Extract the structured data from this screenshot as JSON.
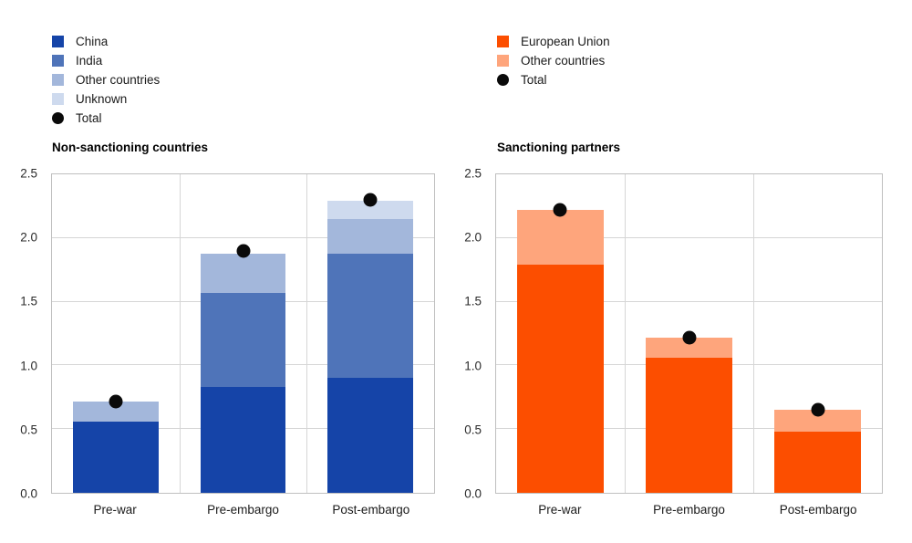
{
  "background": "#ffffff",
  "chart_data": [
    {
      "type": "bar",
      "stacked": true,
      "title": "Non-sanctioning countries",
      "legend_position": "top-left",
      "legend": [
        {
          "label": "China",
          "color": "#1544a8",
          "marker": "square"
        },
        {
          "label": "India",
          "color": "#4f74b9",
          "marker": "square"
        },
        {
          "label": "Other countries",
          "color": "#a3b7db",
          "marker": "square"
        },
        {
          "label": "Unknown",
          "color": "#cedaee",
          "marker": "square"
        },
        {
          "label": "Total",
          "color": "#0a0a0a",
          "marker": "dot"
        }
      ],
      "categories": [
        "Pre-war",
        "Pre-embargo",
        "Post-embargo"
      ],
      "series": [
        {
          "name": "China",
          "color": "#1544a8",
          "values": [
            0.56,
            0.83,
            0.9
          ]
        },
        {
          "name": "India",
          "color": "#4f74b9",
          "values": [
            0,
            0.74,
            0.98
          ]
        },
        {
          "name": "Other countries",
          "color": "#a3b7db",
          "values": [
            0.16,
            0.31,
            0.27
          ]
        },
        {
          "name": "Unknown",
          "color": "#cedaee",
          "values": [
            0,
            0,
            0.14
          ]
        }
      ],
      "dots": {
        "name": "Total",
        "color": "#0a0a0a",
        "values": [
          0.72,
          1.9,
          2.3
        ]
      },
      "ylim": [
        0,
        2.5
      ],
      "yticks": [
        "0.0",
        "0.5",
        "1.0",
        "1.5",
        "2.0",
        "2.5"
      ],
      "xlabel": "",
      "ylabel": "",
      "grid": true
    },
    {
      "type": "bar",
      "stacked": true,
      "title": "Sanctioning partners",
      "legend_position": "top-left",
      "legend": [
        {
          "label": "European Union",
          "color": "#fc4e00",
          "marker": "square"
        },
        {
          "label": "Other countries",
          "color": "#fea57c",
          "marker": "square"
        },
        {
          "label": "Total",
          "color": "#0a0a0a",
          "marker": "dot"
        }
      ],
      "categories": [
        "Pre-war",
        "Pre-embargo",
        "Post-embargo"
      ],
      "series": [
        {
          "name": "European Union",
          "color": "#fc4e00",
          "values": [
            1.79,
            1.06,
            0.48
          ]
        },
        {
          "name": "Other countries",
          "color": "#fea57c",
          "values": [
            0.43,
            0.16,
            0.17
          ]
        }
      ],
      "dots": {
        "name": "Total",
        "color": "#0a0a0a",
        "values": [
          2.22,
          1.22,
          0.65
        ]
      },
      "ylim": [
        0,
        2.5
      ],
      "yticks": [
        "0.0",
        "0.5",
        "1.0",
        "1.5",
        "2.0",
        "2.5"
      ],
      "xlabel": "",
      "ylabel": "",
      "grid": true
    }
  ]
}
